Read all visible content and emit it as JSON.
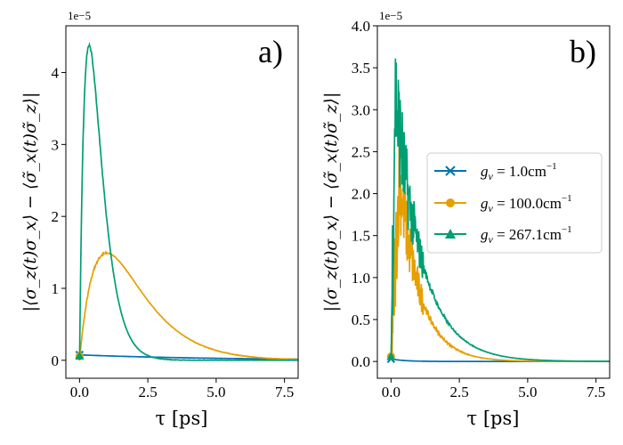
{
  "chart_data": [
    {
      "type": "line",
      "panel_label": "a)",
      "xlabel": "τ [ps]",
      "ylabel": "|⟨σ_z(t)σ_x⟩ − ⟨σ̃_x(t)σ̃_z⟩|",
      "multiplier": "1e−5",
      "xlim": [
        -0.5,
        8.0
      ],
      "ylim": [
        -0.25,
        4.65
      ],
      "xticks": [
        0.0,
        2.5,
        5.0,
        7.5
      ],
      "xtick_labels": [
        "0.0",
        "2.5",
        "5.0",
        "7.5"
      ],
      "yticks": [
        0,
        1,
        2,
        3,
        4
      ],
      "ytick_labels": [
        "0",
        "1",
        "2",
        "3",
        "4"
      ],
      "series": [
        {
          "name": "g_v = 1.0cm⁻¹",
          "color": "#0072b2",
          "marker": "x",
          "kind": "decay",
          "start": 0.075,
          "rate": 0.2
        },
        {
          "name": "g_v = 100.0cm⁻¹",
          "color": "#e69f00",
          "marker": "o",
          "kind": "rise",
          "peak": 1.49,
          "tpeak": 1.0
        },
        {
          "name": "g_v = 267.1cm⁻¹",
          "color": "#009e73",
          "marker": "^",
          "kind": "rise",
          "peak": 4.38,
          "tpeak": 0.35
        }
      ]
    },
    {
      "type": "line",
      "panel_label": "b)",
      "xlabel": "τ [ps]",
      "ylabel": "|⟨σ_z(t)σ_x⟩ − ⟨σ̃_x(t)σ̃_z⟩|",
      "multiplier": "1e−5",
      "xlim": [
        -0.5,
        8.0
      ],
      "ylim": [
        -0.2,
        4.0
      ],
      "xticks": [
        0.0,
        2.5,
        5.0,
        7.5
      ],
      "xtick_labels": [
        "0.0",
        "2.5",
        "5.0",
        "7.5"
      ],
      "yticks": [
        0.0,
        0.5,
        1.0,
        1.5,
        2.0,
        2.5,
        3.0,
        3.5,
        4.0
      ],
      "ytick_labels": [
        "0.0",
        "0.5",
        "1.0",
        "1.5",
        "2.0",
        "2.5",
        "3.0",
        "3.5",
        "4.0"
      ],
      "legend_position": "center-right",
      "series": [
        {
          "name": "g_v = 1.0cm⁻¹",
          "color": "#0072b2",
          "marker": "x",
          "kind": "decay",
          "start": 0.03,
          "rate": 2.0
        },
        {
          "name": "g_v = 100.0cm⁻¹",
          "color": "#e69f00",
          "marker": "o",
          "kind": "spiky",
          "peak": 2.2,
          "tpeak": 0.3,
          "rate": 1.3
        },
        {
          "name": "g_v = 267.1cm⁻¹",
          "color": "#009e73",
          "marker": "^",
          "kind": "spiky",
          "peak": 3.2,
          "tpeak": 0.15,
          "rate": 1.0
        }
      ]
    }
  ],
  "legend": [
    {
      "label": "g_v = 1.0cm⁻¹",
      "g": "g",
      "sub": "v",
      "rest": " = 1.0cm",
      "sup": "−1"
    },
    {
      "label": "g_v = 100.0cm⁻¹",
      "g": "g",
      "sub": "v",
      "rest": " = 100.0cm",
      "sup": "−1"
    },
    {
      "label": "g_v = 267.1cm⁻¹",
      "g": "g",
      "sub": "v",
      "rest": " = 267.1cm",
      "sup": "−1"
    }
  ]
}
